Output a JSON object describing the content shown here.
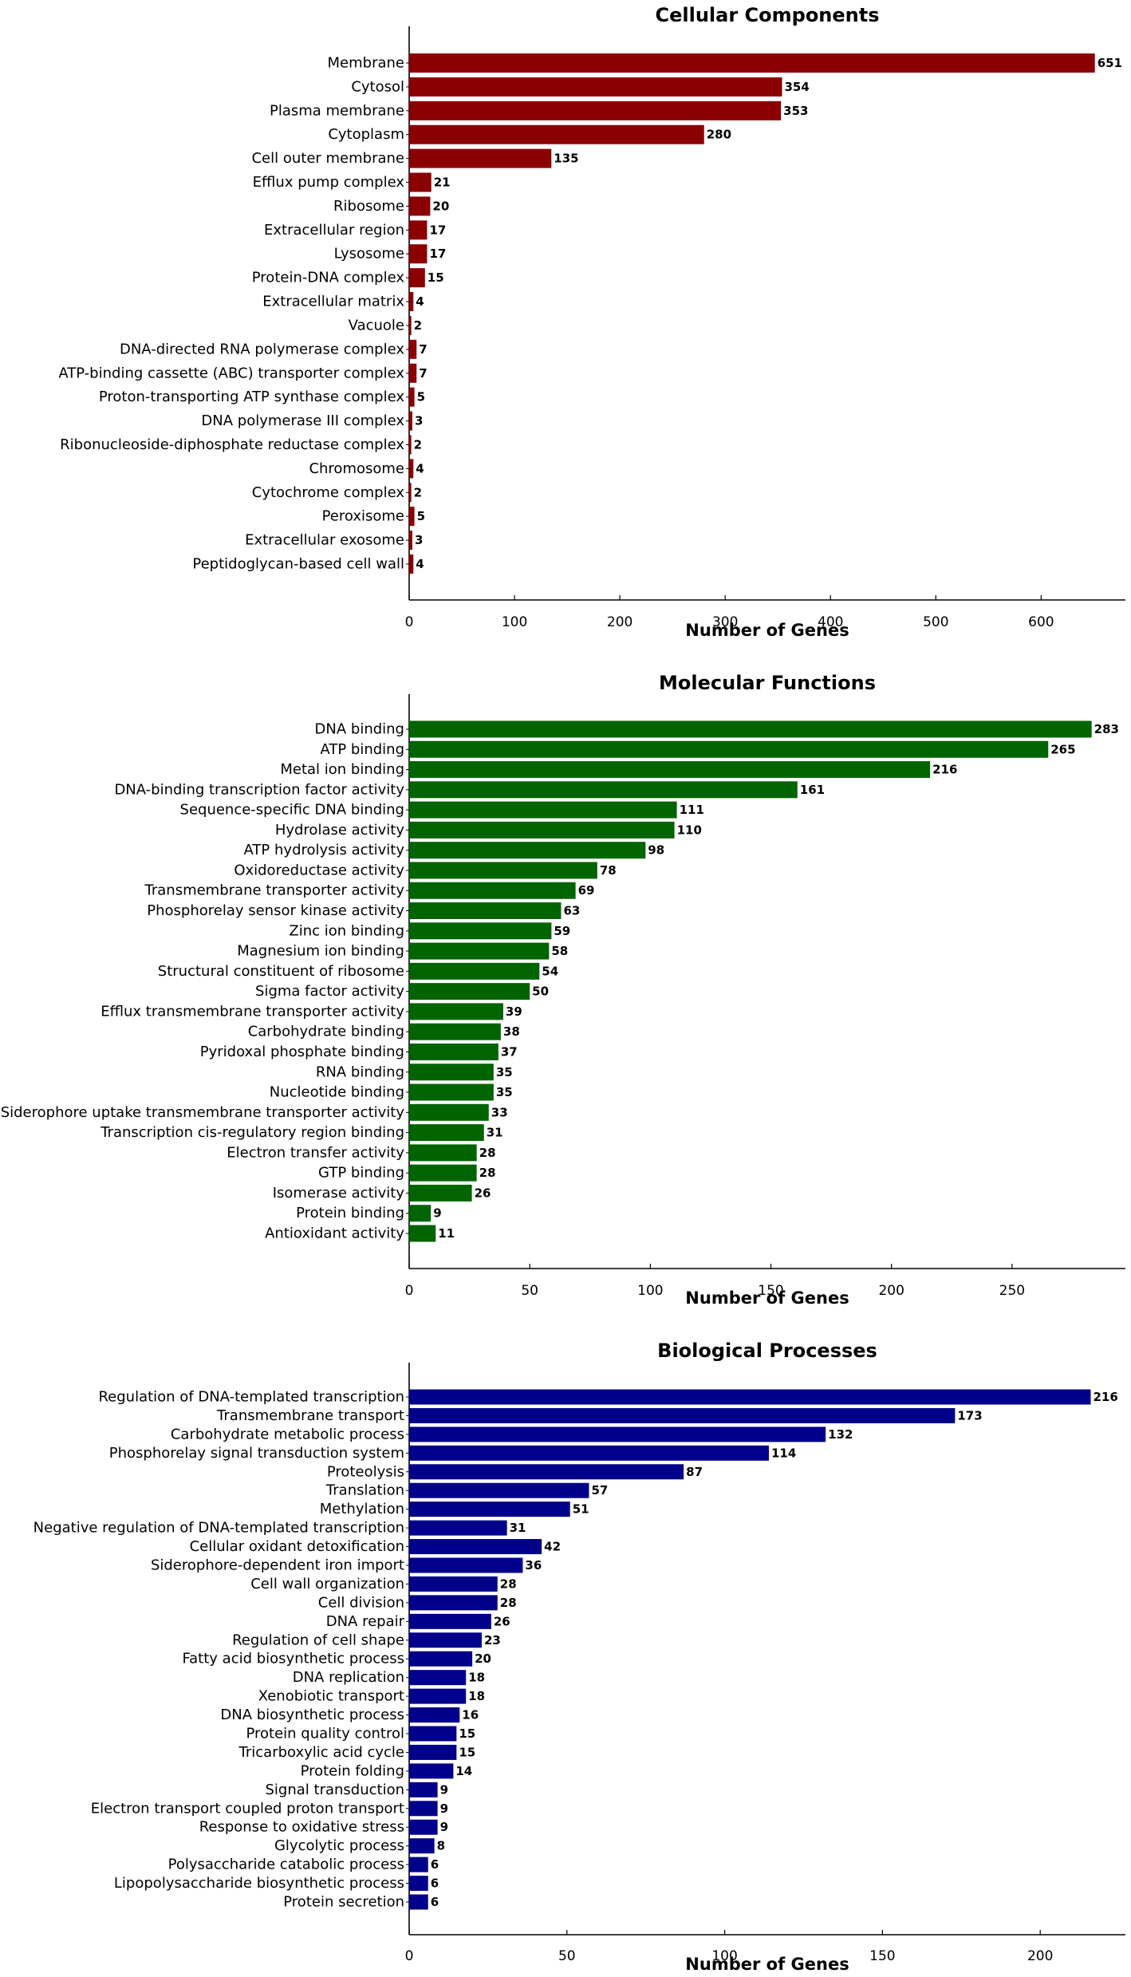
{
  "chart_data": [
    {
      "type": "bar",
      "orientation": "horizontal",
      "title": "Cellular Components",
      "xlabel": "Number of Genes",
      "ylabel": "",
      "color": "#8b0000",
      "xlim": [
        0,
        680
      ],
      "xticks": [
        0,
        100,
        200,
        300,
        400,
        500,
        600
      ],
      "grid": false,
      "categories": [
        "Membrane",
        "Cytosol",
        "Plasma membrane",
        "Cytoplasm",
        "Cell outer membrane",
        "Efflux pump complex",
        "Ribosome",
        "Extracellular region",
        "Lysosome",
        "Protein-DNA complex",
        "Extracellular matrix",
        "Vacuole",
        "DNA-directed RNA polymerase complex",
        "ATP-binding cassette (ABC) transporter complex",
        "Proton-transporting ATP synthase complex",
        "DNA polymerase III complex",
        "Ribonucleoside-diphosphate reductase complex",
        "Chromosome",
        "Cytochrome complex",
        "Peroxisome",
        "Extracellular exosome",
        "Peptidoglycan-based cell wall"
      ],
      "values": [
        651,
        354,
        353,
        280,
        135,
        21,
        20,
        17,
        17,
        15,
        4,
        2,
        7,
        7,
        5,
        3,
        2,
        4,
        2,
        5,
        3,
        4
      ]
    },
    {
      "type": "bar",
      "orientation": "horizontal",
      "title": "Molecular Functions",
      "xlabel": "Number of Genes",
      "ylabel": "",
      "color": "#006400",
      "xlim": [
        0,
        297
      ],
      "xticks": [
        0,
        50,
        100,
        150,
        200,
        250
      ],
      "grid": false,
      "categories": [
        "DNA binding",
        "ATP binding",
        "Metal ion binding",
        "DNA-binding transcription factor activity",
        "Sequence-specific DNA binding",
        "Hydrolase activity",
        "ATP hydrolysis activity",
        "Oxidoreductase activity",
        "Transmembrane transporter activity",
        "Phosphorelay sensor kinase activity",
        "Zinc ion binding",
        "Magnesium ion binding",
        "Structural constituent of ribosome",
        "Sigma factor activity",
        "Efflux transmembrane transporter activity",
        "Carbohydrate binding",
        "Pyridoxal phosphate binding",
        "RNA binding",
        "Nucleotide binding",
        "Siderophore uptake transmembrane transporter activity",
        "Transcription cis-regulatory region binding",
        "Electron transfer activity",
        "GTP binding",
        "Isomerase activity",
        "Protein binding",
        "Antioxidant activity"
      ],
      "values": [
        283,
        265,
        216,
        161,
        111,
        110,
        98,
        78,
        69,
        63,
        59,
        58,
        54,
        50,
        39,
        38,
        37,
        35,
        35,
        33,
        31,
        28,
        28,
        26,
        9,
        11
      ]
    },
    {
      "type": "bar",
      "orientation": "horizontal",
      "title": "Biological Processes",
      "xlabel": "Number of Genes",
      "ylabel": "",
      "color": "#00008b",
      "xlim": [
        0,
        227
      ],
      "xticks": [
        0,
        50,
        100,
        150,
        200
      ],
      "grid": false,
      "categories": [
        "Regulation of DNA-templated transcription",
        "Transmembrane transport",
        "Carbohydrate metabolic process",
        "Phosphorelay signal transduction system",
        "Proteolysis",
        "Translation",
        "Methylation",
        "Negative regulation of DNA-templated transcription",
        "Cellular oxidant detoxification",
        "Siderophore-dependent iron import",
        "Cell wall organization",
        "Cell division",
        "DNA repair",
        "Regulation of cell shape",
        "Fatty acid biosynthetic process",
        "DNA replication",
        "Xenobiotic transport",
        "DNA biosynthetic process",
        "Protein quality control",
        "Tricarboxylic acid cycle",
        "Protein folding",
        "Signal transduction",
        "Electron transport coupled proton transport",
        "Response to oxidative stress",
        "Glycolytic process",
        "Polysaccharide catabolic process",
        "Lipopolysaccharide biosynthetic process",
        "Protein secretion"
      ],
      "values": [
        216,
        173,
        132,
        114,
        87,
        57,
        51,
        31,
        42,
        36,
        28,
        28,
        26,
        23,
        20,
        18,
        18,
        16,
        15,
        15,
        14,
        9,
        9,
        9,
        8,
        6,
        6,
        6
      ]
    }
  ]
}
